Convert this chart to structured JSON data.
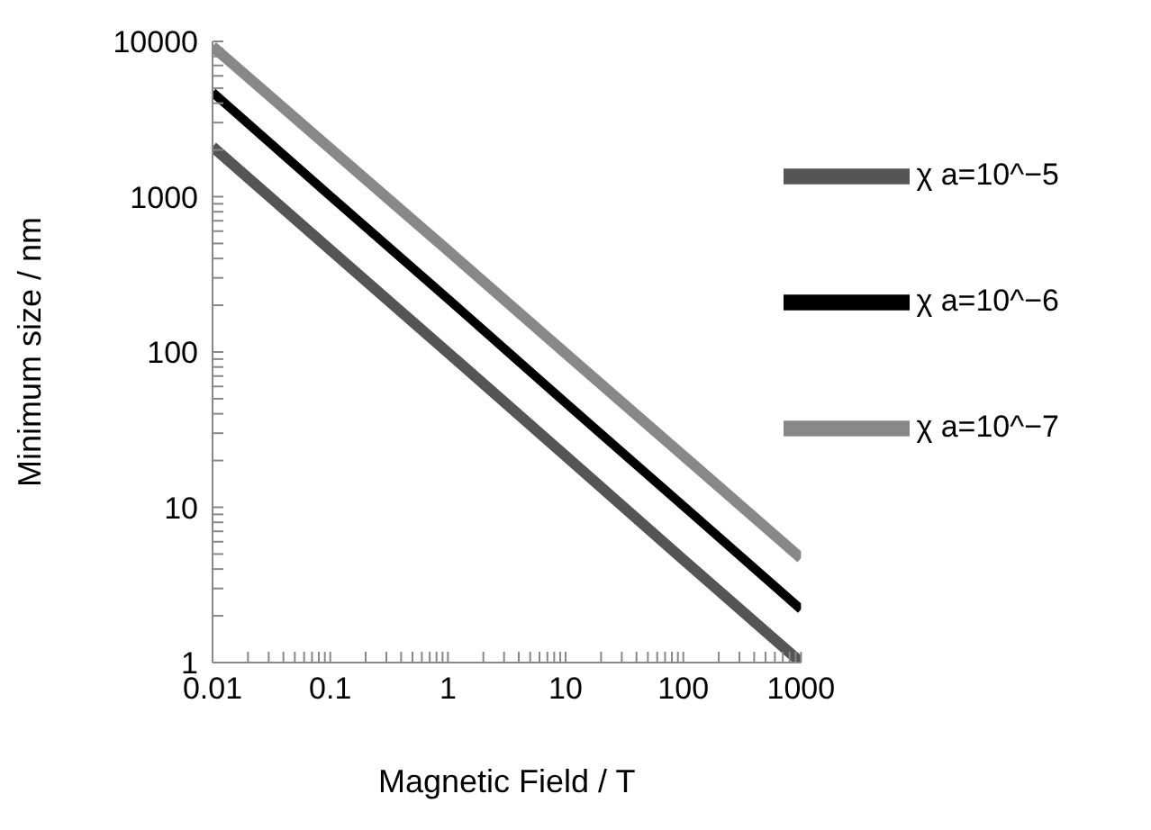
{
  "chart_data": {
    "type": "line",
    "xlabel": "Magnetic Field / T",
    "ylabel": "Minimum size / nm",
    "log": "xy",
    "grid": false,
    "legend": "top right",
    "marker": "none",
    "line_style": "solid",
    "x": [
      0.01,
      0.1,
      1,
      10,
      100,
      1000
    ],
    "xlim": [
      0.01,
      1000
    ],
    "ylim": [
      1,
      10000
    ],
    "xticks": [
      0.01,
      {
        "value": 0.02,
        "label": null
      },
      {
        "value": 0.03,
        "label": null
      },
      {
        "value": 0.04,
        "label": null
      },
      {
        "value": 0.05,
        "label": null
      },
      {
        "value": 0.06,
        "label": null
      },
      {
        "value": 0.07,
        "label": null
      },
      {
        "value": 0.08,
        "label": null
      },
      {
        "value": 0.09,
        "label": null
      },
      0.1,
      {
        "value": 0.2,
        "label": null
      },
      {
        "value": 0.3,
        "label": null
      },
      {
        "value": 0.4,
        "label": null
      },
      {
        "value": 0.5,
        "label": null
      },
      {
        "value": 0.6,
        "label": null
      },
      {
        "value": 0.7,
        "label": null
      },
      {
        "value": 0.8,
        "label": null
      },
      {
        "value": 0.9,
        "label": null
      },
      1,
      {
        "value": 2,
        "label": null
      },
      {
        "value": 3,
        "label": null
      },
      {
        "value": 4,
        "label": null
      },
      {
        "value": 5,
        "label": null
      },
      {
        "value": 6,
        "label": null
      },
      {
        "value": 7,
        "label": null
      },
      {
        "value": 8,
        "label": null
      },
      {
        "value": 9,
        "label": null
      },
      10,
      {
        "value": 20,
        "label": null
      },
      {
        "value": 30,
        "label": null
      },
      {
        "value": 40,
        "label": null
      },
      {
        "value": 50,
        "label": null
      },
      {
        "value": 60,
        "label": null
      },
      {
        "value": 70,
        "label": null
      },
      {
        "value": 80,
        "label": null
      },
      {
        "value": 90,
        "label": null
      },
      100,
      {
        "value": 200,
        "label": null
      },
      {
        "value": 300,
        "label": null
      },
      {
        "value": 400,
        "label": null
      },
      {
        "value": 500,
        "label": null
      },
      {
        "value": 600,
        "label": null
      },
      {
        "value": 700,
        "label": null
      },
      {
        "value": 800,
        "label": null
      },
      {
        "value": 900,
        "label": null
      },
      1000
    ],
    "yticks": [
      1,
      {
        "value": 2,
        "label": null
      },
      {
        "value": 3,
        "label": null
      },
      {
        "value": 4,
        "label": null
      },
      {
        "value": 5,
        "label": null
      },
      {
        "value": 6,
        "label": null
      },
      {
        "value": 7,
        "label": null
      },
      {
        "value": 8,
        "label": null
      },
      {
        "value": 9,
        "label": null
      },
      10,
      {
        "value": 20,
        "label": null
      },
      {
        "value": 30,
        "label": null
      },
      {
        "value": 40,
        "label": null
      },
      {
        "value": 50,
        "label": null
      },
      {
        "value": 60,
        "label": null
      },
      {
        "value": 70,
        "label": null
      },
      {
        "value": 80,
        "label": null
      },
      {
        "value": 90,
        "label": null
      },
      100,
      {
        "value": 200,
        "label": null
      },
      {
        "value": 300,
        "label": null
      },
      {
        "value": 400,
        "label": null
      },
      {
        "value": 500,
        "label": null
      },
      {
        "value": 600,
        "label": null
      },
      {
        "value": 700,
        "label": null
      },
      {
        "value": 800,
        "label": null
      },
      {
        "value": 900,
        "label": null
      },
      1000,
      {
        "value": 2000,
        "label": null
      },
      {
        "value": 3000,
        "label": null
      },
      {
        "value": 4000,
        "label": null
      },
      {
        "value": 5000,
        "label": null
      },
      {
        "value": 6000,
        "label": null
      },
      {
        "value": 7000,
        "label": null
      },
      {
        "value": 8000,
        "label": null
      },
      {
        "value": 9000,
        "label": null
      },
      10000
    ],
    "series": [
      {
        "name": "χ a=10^−7",
        "color": "#888888",
        "values": [
          9300,
          2040,
          450,
          98,
          21.5,
          4.7
        ]
      },
      {
        "name": "χ a=10^−6",
        "color": "#000000",
        "values": [
          4700,
          1010,
          220,
          47,
          10.2,
          2.2
        ]
      },
      {
        "name": "χ a=10^−5",
        "color": "#555555",
        "values": [
          2100,
          455,
          99,
          21.4,
          4.6,
          1.0
        ]
      }
    ]
  }
}
